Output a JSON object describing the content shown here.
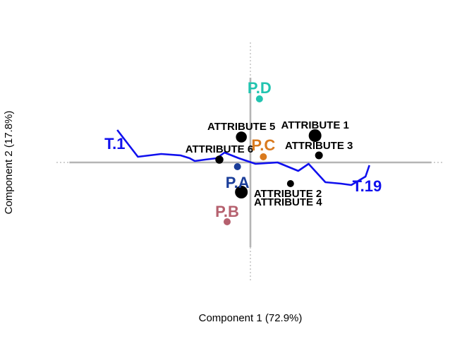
{
  "chart_data": {
    "type": "scatter",
    "title": "",
    "xlabel": "Component 1 (72.9%)",
    "ylabel": "Component 2 (17.8%)",
    "xlim": [
      -1.5,
      1.5
    ],
    "ylim": [
      -0.85,
      0.85
    ],
    "grid": false,
    "legend": "none",
    "products": {
      "color_list": [
        "#1a3d99",
        "#b5606e",
        "#d97a1e",
        "#22c4b0"
      ],
      "points": [
        {
          "label": "P.A",
          "x": -0.1,
          "y": -0.03,
          "color": "#1a3d99"
        },
        {
          "label": "P.B",
          "x": -0.18,
          "y": -0.42,
          "color": "#b5606e"
        },
        {
          "label": "P.C",
          "x": 0.1,
          "y": 0.04,
          "color": "#d97a1e"
        },
        {
          "label": "P.D",
          "x": 0.07,
          "y": 0.45,
          "color": "#22c4b0"
        }
      ]
    },
    "attributes": {
      "color": "#000000",
      "points": [
        {
          "label": "ATTRIBUTE 1",
          "x": 0.5,
          "y": 0.19,
          "weight": 1.0
        },
        {
          "label": "ATTRIBUTE 2",
          "x": 0.31,
          "y": -0.15,
          "weight": 0.2
        },
        {
          "label": "ATTRIBUTE 3",
          "x": 0.53,
          "y": 0.05,
          "weight": 0.3
        },
        {
          "label": "ATTRIBUTE 4",
          "x": -0.07,
          "y": -0.21,
          "weight": 1.0
        },
        {
          "label": "ATTRIBUTE 5",
          "x": -0.07,
          "y": 0.18,
          "weight": 0.75
        },
        {
          "label": "ATTRIBUTE 6",
          "x": -0.24,
          "y": 0.02,
          "weight": 0.35
        }
      ]
    },
    "trajectory": {
      "color": "#1010ee",
      "start_label": "T.1",
      "end_label": "T.19",
      "x": [
        -1.03,
        -0.87,
        -0.69,
        -0.54,
        -0.47,
        -0.43,
        -0.35,
        -0.26,
        -0.2,
        -0.09,
        0.04,
        0.21,
        0.37,
        0.45,
        0.58,
        0.7,
        0.78,
        0.89,
        0.92
      ],
      "y": [
        0.23,
        0.04,
        0.06,
        0.05,
        0.03,
        0.01,
        0.02,
        0.03,
        0.07,
        0.03,
        -0.01,
        0.0,
        -0.06,
        -0.01,
        -0.14,
        -0.15,
        -0.16,
        -0.1,
        -0.02
      ]
    }
  }
}
